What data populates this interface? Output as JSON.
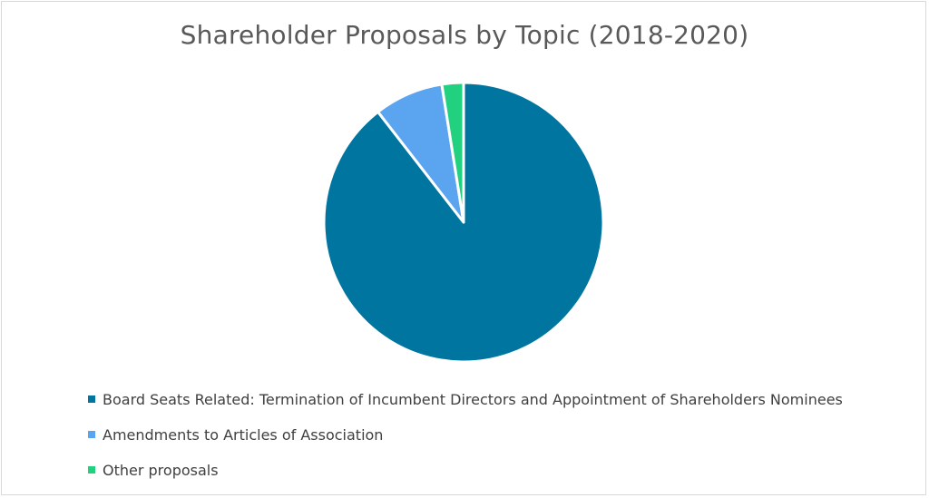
{
  "chart_data": {
    "type": "pie",
    "title": "Shareholder Proposals by Topic (2018-2020)",
    "categories": [
      "Board Seats Related: Termination of Incumbent Directors and Appointment of Shareholders Nominees",
      "Amendments to Articles of Association",
      "Other proposals"
    ],
    "values": [
      89.5,
      8.0,
      2.5
    ],
    "colors": [
      "#00759f",
      "#5ba4f0",
      "#21d17f"
    ],
    "legend_position": "bottom-left",
    "start_angle_deg": 0,
    "direction": "clockwise",
    "slice_border_color": "#ffffff"
  }
}
